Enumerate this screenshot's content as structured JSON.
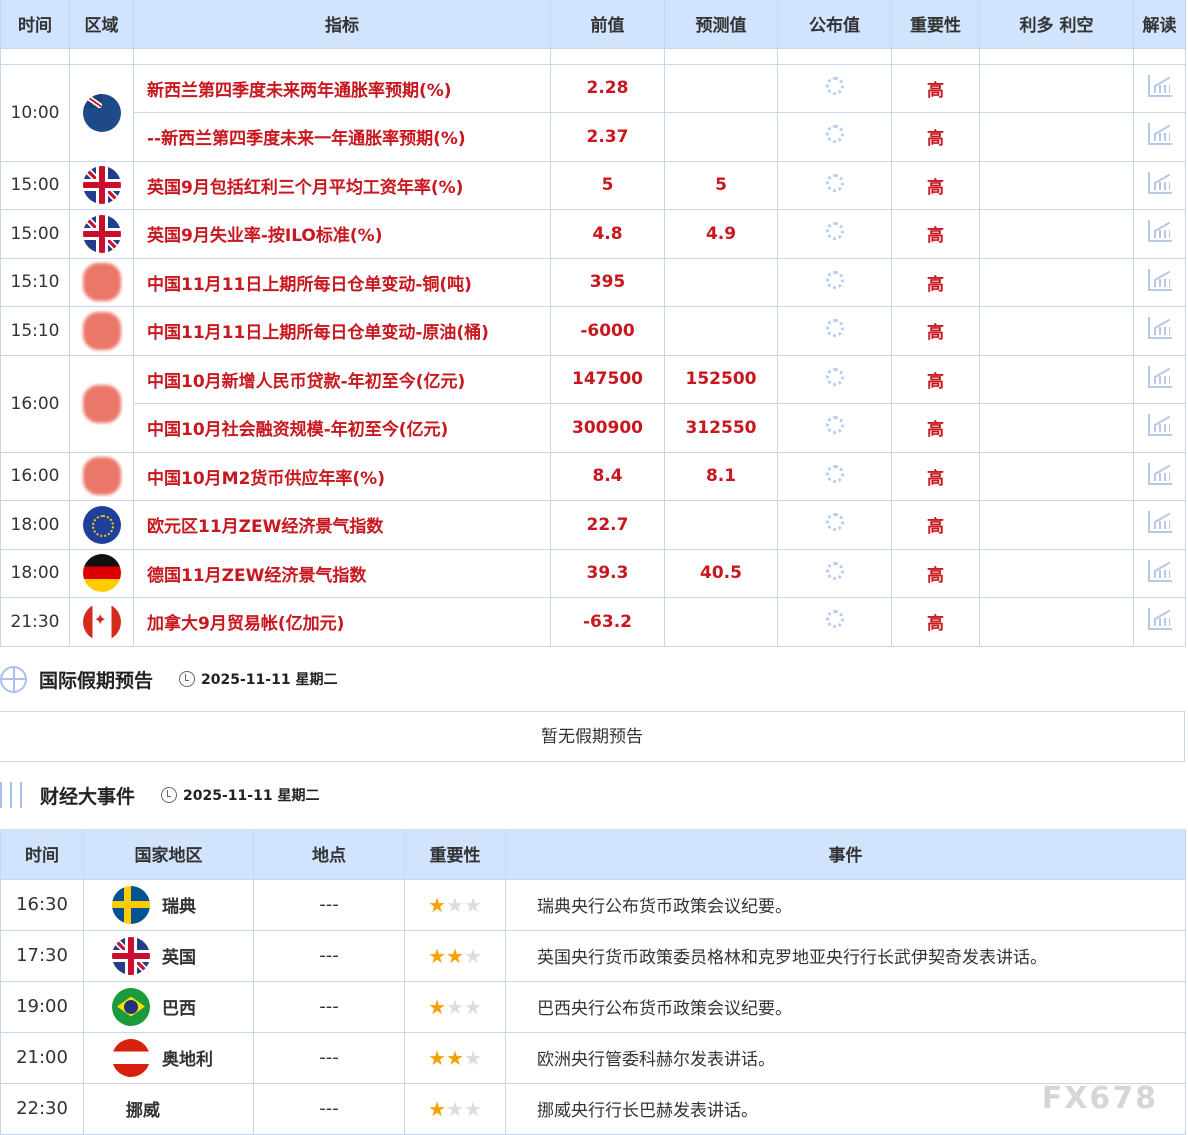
{
  "table": {
    "headers": [
      "时间",
      "区域",
      "指标",
      "前值",
      "预测值",
      "公布值",
      "重要性",
      "利多 利空",
      "解读"
    ],
    "groups": [
      {
        "time": "10:00",
        "flag": "nz",
        "rows": [
          {
            "indicator": "新西兰第四季度未来两年通胀率预期(%)",
            "previous": "2.28",
            "forecast": "",
            "importance": "高"
          },
          {
            "indicator": "--新西兰第四季度未来一年通胀率预期(%)",
            "previous": "2.37",
            "forecast": "",
            "importance": "高"
          }
        ]
      },
      {
        "time": "15:00",
        "flag": "uk",
        "rows": [
          {
            "indicator": "英国9月包括红利三个月平均工资年率(%)",
            "previous": "5",
            "forecast": "5",
            "importance": "高"
          }
        ]
      },
      {
        "time": "15:00",
        "flag": "uk",
        "rows": [
          {
            "indicator": "英国9月失业率-按ILO标准(%)",
            "previous": "4.8",
            "forecast": "4.9",
            "importance": "高"
          }
        ]
      },
      {
        "time": "15:10",
        "flag": "cn",
        "rows": [
          {
            "indicator": "中国11月11日上期所每日仓单变动-铜(吨)",
            "previous": "395",
            "forecast": "",
            "importance": "高"
          }
        ]
      },
      {
        "time": "15:10",
        "flag": "cn",
        "rows": [
          {
            "indicator": "中国11月11日上期所每日仓单变动-原油(桶)",
            "previous": "-6000",
            "forecast": "",
            "importance": "高"
          }
        ]
      },
      {
        "time": "16:00",
        "flag": "cn",
        "rows": [
          {
            "indicator": "中国10月新增人民币贷款-年初至今(亿元)",
            "previous": "147500",
            "forecast": "152500",
            "importance": "高"
          },
          {
            "indicator": "中国10月社会融资规模-年初至今(亿元)",
            "previous": "300900",
            "forecast": "312550",
            "importance": "高"
          }
        ]
      },
      {
        "time": "16:00",
        "flag": "cn",
        "rows": [
          {
            "indicator": "中国10月M2货币供应年率(%)",
            "previous": "8.4",
            "forecast": "8.1",
            "importance": "高"
          }
        ]
      },
      {
        "time": "18:00",
        "flag": "eu",
        "rows": [
          {
            "indicator": "欧元区11月ZEW经济景气指数",
            "previous": "22.7",
            "forecast": "",
            "importance": "高"
          }
        ]
      },
      {
        "time": "18:00",
        "flag": "de",
        "rows": [
          {
            "indicator": "德国11月ZEW经济景气指数",
            "previous": "39.3",
            "forecast": "40.5",
            "importance": "高"
          }
        ]
      },
      {
        "time": "21:30",
        "flag": "ca",
        "rows": [
          {
            "indicator": "加拿大9月贸易帐(亿加元)",
            "previous": "-63.2",
            "forecast": "",
            "importance": "高"
          }
        ]
      }
    ]
  },
  "holidays": {
    "title": "国际假期预告",
    "date": "2025-11-11 星期二",
    "empty": "暂无假期预告"
  },
  "events": {
    "title": "财经大事件",
    "date": "2025-11-11 星期二",
    "headers": [
      "时间",
      "国家地区",
      "地点",
      "重要性",
      "事件"
    ],
    "rows": [
      {
        "time": "16:30",
        "flag": "se",
        "country": "瑞典",
        "place": "---",
        "stars": 1,
        "event": "瑞典央行公布货币政策会议纪要。"
      },
      {
        "time": "17:30",
        "flag": "uk",
        "country": "英国",
        "place": "---",
        "stars": 2,
        "event": "英国央行货币政策委员格林和克罗地亚央行行长武伊契奇发表讲话。"
      },
      {
        "time": "19:00",
        "flag": "br",
        "country": "巴西",
        "place": "---",
        "stars": 1,
        "event": "巴西央行公布货币政策会议纪要。"
      },
      {
        "time": "21:00",
        "flag": "at",
        "country": "奥地利",
        "place": "---",
        "stars": 2,
        "event": "欧洲央行管委科赫尔发表讲话。"
      },
      {
        "time": "22:30",
        "flag": "",
        "country": "挪威",
        "place": "---",
        "stars": 1,
        "event": "挪威央行行长巴赫发表讲话。"
      }
    ]
  },
  "watermark": "FX678",
  "colors": {
    "header_bg": "#d2e3fd",
    "accent_red": "#c8171e",
    "star": "#f7a100",
    "border": "#c5d6f0"
  }
}
